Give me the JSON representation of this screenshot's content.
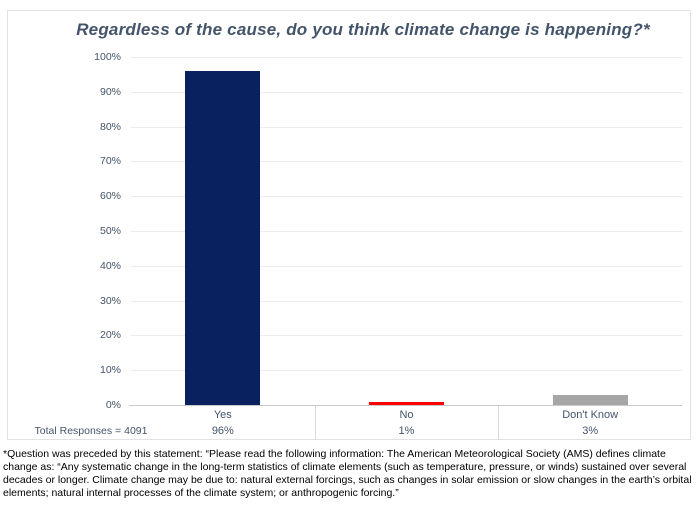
{
  "chart_data": {
    "type": "bar",
    "title": "Regardless of the cause, do you think climate change is happening?*",
    "categories": [
      "Yes",
      "No",
      "Don't Know"
    ],
    "values": [
      96,
      1,
      3
    ],
    "value_labels": [
      "96%",
      "1%",
      "3%"
    ],
    "bar_colors": [
      "#0a2160",
      "#fe0000",
      "#a6a6a6"
    ],
    "ylim": [
      0,
      100
    ],
    "ytick_step": 10,
    "ytick_labels": [
      "0%",
      "10%",
      "20%",
      "30%",
      "40%",
      "50%",
      "60%",
      "70%",
      "80%",
      "90%",
      "100%"
    ],
    "grid": true,
    "legend": "none",
    "xlabel": "",
    "ylabel": ""
  },
  "summary_row": {
    "label": "Total Responses =  4091"
  },
  "footnote": "*Question was preceded by this statement: “Please read the following information: The American Meteorological Society (AMS) defines climate change as: “Any systematic change in the long-term statistics of climate elements (such as temperature, pressure, or winds) sustained over several decades or longer. Climate change may be due to: natural external forcings, such as changes in solar emission or slow changes in the earth’s orbital elements; natural internal processes of the climate system; or anthropogenic forcing.”"
}
